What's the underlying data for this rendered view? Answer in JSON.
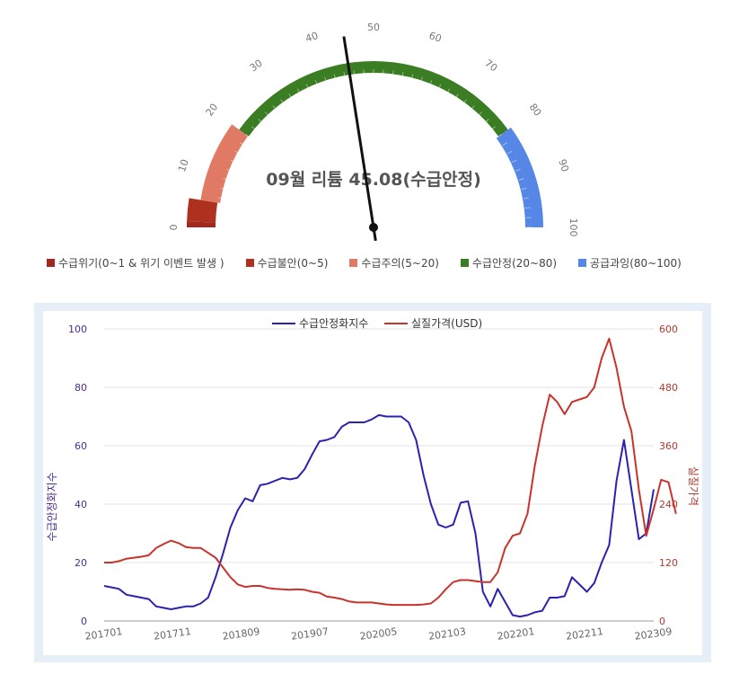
{
  "gauge": {
    "title": "09월 리튬 45.08(수급안정)",
    "value": 45.08,
    "min": 0,
    "max": 100,
    "tick_labels": [
      "0",
      "10",
      "20",
      "30",
      "40",
      "50",
      "60",
      "70",
      "80",
      "90",
      "100"
    ],
    "bands": [
      {
        "label": "수급위기(0~1 & 위기 이벤트 발생 )",
        "from": 0,
        "to": 1,
        "color": "#a0281e"
      },
      {
        "label": "수급불안(0~5)",
        "from": 1,
        "to": 5,
        "color": "#b0301f"
      },
      {
        "label": "수급주의(5~20)",
        "from": 5,
        "to": 20,
        "color": "#e07a64"
      },
      {
        "label": "수급안정(20~80)",
        "from": 20,
        "to": 80,
        "color": "#3b7d23"
      },
      {
        "label": "공급과잉(80~100)",
        "from": 80,
        "to": 100,
        "color": "#5787e6"
      }
    ]
  },
  "chart_data": {
    "type": "line",
    "legend_position": "top-center",
    "grid": true,
    "x_tick_labels": [
      "201701",
      "201711",
      "201809",
      "201907",
      "202005",
      "202103",
      "202201",
      "202211",
      "202309"
    ],
    "y_left_label": "수급안정화지수",
    "y_right_label": "실질가격",
    "y_left_ticks": [
      "0",
      "20",
      "40",
      "60",
      "80",
      "100"
    ],
    "y_right_ticks": [
      "0",
      "120",
      "240",
      "360",
      "480",
      "600"
    ],
    "ylim_left": [
      0,
      100
    ],
    "ylim_right": [
      0,
      600
    ],
    "series": [
      {
        "name": "수급안정화지수",
        "axis": "left",
        "color": "#2a23b0",
        "values": [
          12,
          11.5,
          11,
          9,
          8.5,
          8,
          7.5,
          5,
          4.5,
          4,
          4.5,
          5,
          5,
          6,
          8,
          15,
          23,
          32,
          38,
          42,
          41,
          46.5,
          47,
          48,
          49,
          48.5,
          49,
          52,
          57,
          61.5,
          62,
          63,
          66.5,
          68,
          68,
          68,
          69,
          70.5,
          70,
          70,
          70,
          68,
          62,
          50,
          40,
          33,
          32,
          33,
          40.5,
          41,
          30,
          10,
          5,
          11,
          6.5,
          2,
          1.5,
          2,
          3,
          3.5,
          8,
          8,
          8.5,
          15,
          12.5,
          10,
          13,
          20,
          26,
          48,
          62,
          45,
          28,
          30,
          45.08
        ]
      },
      {
        "name": "실질가격(USD)",
        "axis": "right",
        "color": "#c8342b",
        "values": [
          120,
          120,
          123,
          128,
          130,
          132,
          135,
          150,
          158,
          165,
          160,
          152,
          150,
          150,
          140,
          130,
          110,
          90,
          75,
          70,
          72,
          72,
          68,
          66,
          65,
          64,
          65,
          64,
          60,
          58,
          50,
          48,
          45,
          40,
          38,
          38,
          38,
          36,
          34,
          33,
          33,
          33,
          33,
          34,
          36,
          48,
          65,
          80,
          84,
          84,
          82,
          80,
          80,
          100,
          150,
          175,
          180,
          220,
          320,
          400,
          465,
          450,
          425,
          450,
          455,
          460,
          480,
          540,
          580,
          520,
          440,
          390,
          270,
          175,
          230,
          290,
          285,
          220
        ]
      }
    ]
  },
  "colors": {
    "frame_bg": "#e6eef8",
    "grid": "#e3e3e3",
    "left_axis_text": "#4a2d92",
    "right_axis_text": "#b03a2e",
    "needle": "#111111"
  }
}
